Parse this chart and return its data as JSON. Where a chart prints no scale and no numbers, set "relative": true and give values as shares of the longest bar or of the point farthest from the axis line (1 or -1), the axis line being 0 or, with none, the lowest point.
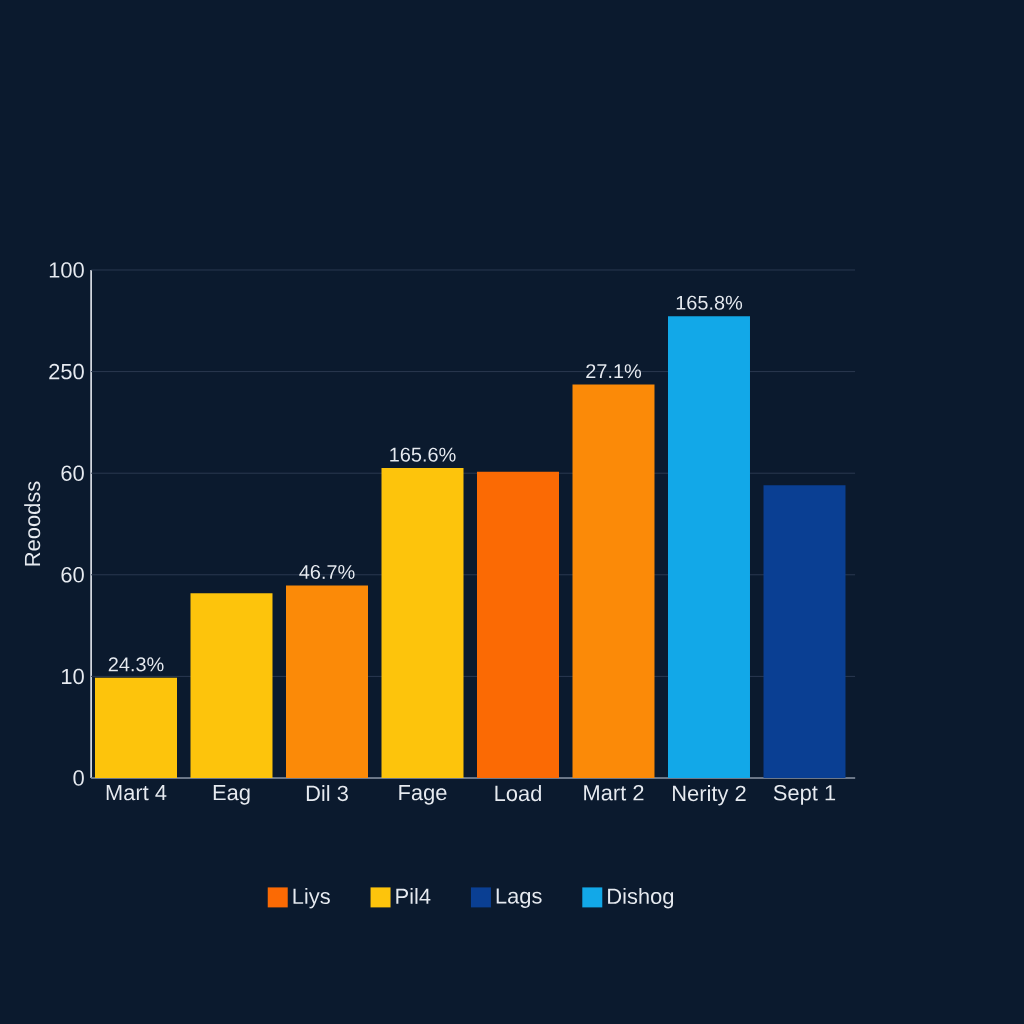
{
  "chart_data": {
    "type": "bar",
    "ylabel": "Reoodss",
    "relative": true,
    "categories": [
      "Mart 4",
      "Eag",
      "Dil 3",
      "Fage",
      "Load",
      "Mart 2",
      "Nerity 2",
      "Sept 1"
    ],
    "series": [
      {
        "name": "Liys",
        "color": "#fb6a04",
        "values": [
          null,
          null,
          null,
          null,
          0.663,
          null,
          null,
          null
        ]
      },
      {
        "name": "Pil4",
        "color": "#fdc40c",
        "values": [
          0.217,
          0.4,
          null,
          0.671,
          null,
          null,
          null,
          null
        ]
      },
      {
        "name": "Lags",
        "color": "#0a3f93",
        "values": [
          null,
          null,
          null,
          null,
          null,
          null,
          null,
          0.634
        ]
      },
      {
        "name": "Dishog",
        "color": "#12a8e8",
        "values": [
          null,
          null,
          null,
          null,
          null,
          null,
          1,
          null
        ]
      },
      {
        "color": "#fb8a08",
        "values": [
          null,
          null,
          0.417,
          null,
          null,
          0.852,
          null,
          null
        ]
      }
    ],
    "annotations": [
      {
        "text": "24.3%",
        "x": "Mart 4",
        "y": 0.217
      },
      {
        "text": "46.7%",
        "x": "Dil 3",
        "y": 0.417
      },
      {
        "text": "165.6%",
        "x": "Fage",
        "y": 0.671
      },
      {
        "text": "27.1%",
        "x": "Mart 2",
        "y": 0.852
      },
      {
        "text": "165.8%",
        "x": "Nerity 2",
        "y": 1
      },
      "0",
      "10",
      "60",
      "60",
      "250",
      "100"
    ],
    "grid": "y",
    "legend": "bottom"
  }
}
